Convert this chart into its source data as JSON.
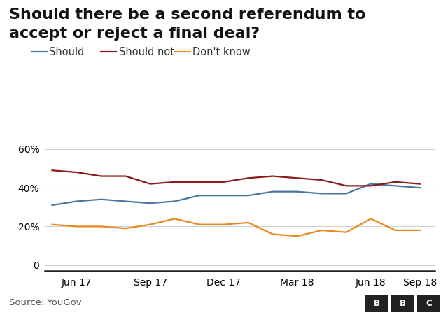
{
  "title_line1": "Should there be a second referendum to",
  "title_line2": "accept or reject a final deal?",
  "source": "Source: YouGov",
  "series": [
    {
      "label": "Should",
      "color": "#4878a0",
      "data": [
        [
          0,
          31
        ],
        [
          1,
          33
        ],
        [
          2,
          34
        ],
        [
          3,
          33
        ],
        [
          4,
          32
        ],
        [
          5,
          33
        ],
        [
          6,
          36
        ],
        [
          7,
          36
        ],
        [
          8,
          36
        ],
        [
          9,
          38
        ],
        [
          10,
          38
        ],
        [
          11,
          37
        ],
        [
          12,
          37
        ],
        [
          13,
          42
        ],
        [
          14,
          41
        ],
        [
          15,
          40
        ]
      ]
    },
    {
      "label": "Should not",
      "color": "#8b1a1a",
      "data": [
        [
          0,
          49
        ],
        [
          1,
          48
        ],
        [
          2,
          46
        ],
        [
          3,
          46
        ],
        [
          4,
          42
        ],
        [
          5,
          43
        ],
        [
          6,
          43
        ],
        [
          7,
          43
        ],
        [
          8,
          45
        ],
        [
          9,
          46
        ],
        [
          10,
          45
        ],
        [
          11,
          44
        ],
        [
          12,
          41
        ],
        [
          13,
          41
        ],
        [
          14,
          43
        ],
        [
          15,
          42
        ]
      ]
    },
    {
      "label": "Don't know",
      "color": "#e8891e",
      "data": [
        [
          0,
          21
        ],
        [
          1,
          20
        ],
        [
          2,
          20
        ],
        [
          3,
          19
        ],
        [
          4,
          21
        ],
        [
          5,
          24
        ],
        [
          6,
          21
        ],
        [
          7,
          21
        ],
        [
          8,
          22
        ],
        [
          9,
          16
        ],
        [
          10,
          15
        ],
        [
          11,
          18
        ],
        [
          12,
          17
        ],
        [
          13,
          24
        ],
        [
          14,
          18
        ],
        [
          15,
          18
        ]
      ]
    }
  ],
  "xtick_positions": [
    1,
    4,
    7,
    10,
    13,
    15
  ],
  "xtick_labels": [
    "Jun 17",
    "Sep 17",
    "Dec 17",
    "Mar 18",
    "Jun 18",
    "Sep 18"
  ],
  "yticks": [
    0,
    20,
    40,
    60
  ],
  "ylim": [
    -3,
    67
  ],
  "xlim": [
    -0.3,
    15.6
  ],
  "grid_color": "#d0d0d0",
  "bg_color": "#ffffff",
  "title_fontsize": 16,
  "legend_fontsize": 10.5,
  "axis_fontsize": 10,
  "source_fontsize": 9.5
}
